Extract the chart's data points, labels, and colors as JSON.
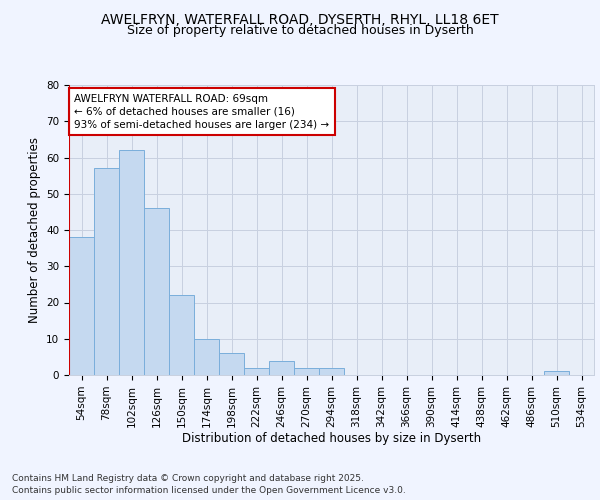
{
  "title1": "AWELFRYN, WATERFALL ROAD, DYSERTH, RHYL, LL18 6ET",
  "title2": "Size of property relative to detached houses in Dyserth",
  "xlabel": "Distribution of detached houses by size in Dyserth",
  "ylabel": "Number of detached properties",
  "categories": [
    "54sqm",
    "78sqm",
    "102sqm",
    "126sqm",
    "150sqm",
    "174sqm",
    "198sqm",
    "222sqm",
    "246sqm",
    "270sqm",
    "294sqm",
    "318sqm",
    "342sqm",
    "366sqm",
    "390sqm",
    "414sqm",
    "438sqm",
    "462sqm",
    "486sqm",
    "510sqm",
    "534sqm"
  ],
  "values": [
    38,
    57,
    62,
    46,
    22,
    10,
    6,
    2,
    4,
    2,
    2,
    0,
    0,
    0,
    0,
    0,
    0,
    0,
    0,
    1,
    0
  ],
  "bar_color": "#c5d9f0",
  "bar_edge_color": "#7aaedb",
  "annotation_text_line1": "AWELFRYN WATERFALL ROAD: 69sqm",
  "annotation_text_line2": "← 6% of detached houses are smaller (16)",
  "annotation_text_line3": "93% of semi-detached houses are larger (234) →",
  "annotation_box_facecolor": "#ffffff",
  "annotation_border_color": "#cc0000",
  "vline_color": "#cc0000",
  "vline_x": -0.5,
  "ylim": [
    0,
    80
  ],
  "yticks": [
    0,
    10,
    20,
    30,
    40,
    50,
    60,
    70,
    80
  ],
  "bg_color": "#f0f4ff",
  "plot_bg_color": "#e8eef8",
  "grid_color": "#c8d0e0",
  "footer": "Contains HM Land Registry data © Crown copyright and database right 2025.\nContains public sector information licensed under the Open Government Licence v3.0.",
  "title_fontsize": 10,
  "subtitle_fontsize": 9,
  "axis_label_fontsize": 8.5,
  "tick_fontsize": 7.5,
  "annotation_fontsize": 7.5,
  "footer_fontsize": 6.5
}
